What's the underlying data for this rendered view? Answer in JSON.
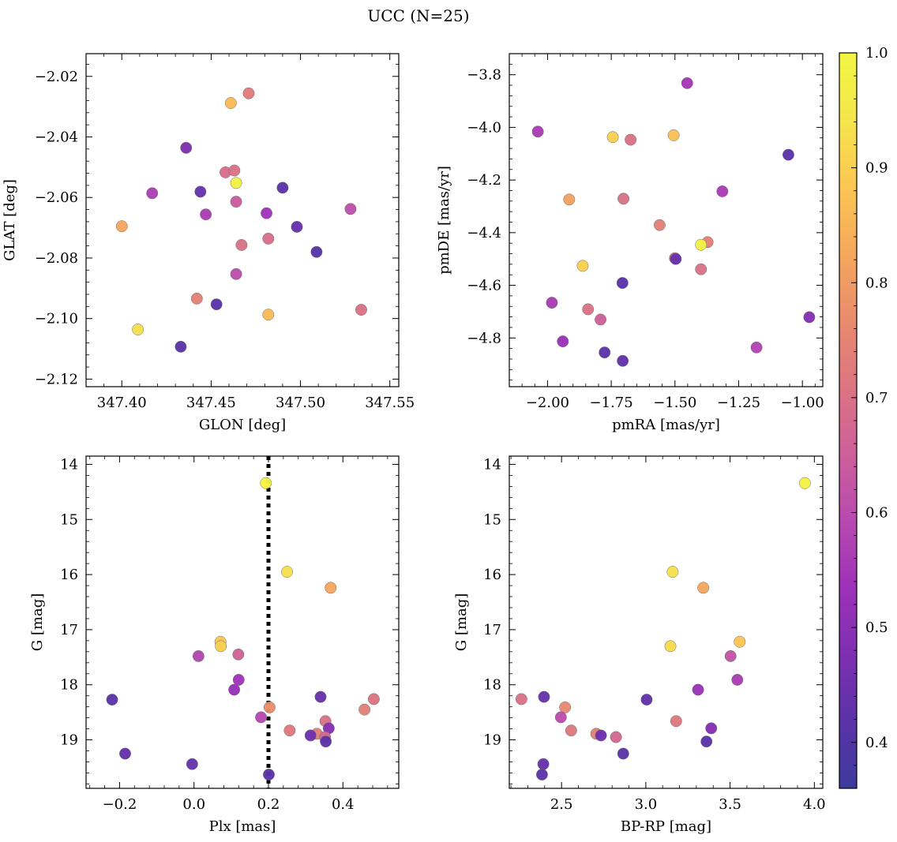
{
  "figure": {
    "title": "UCC (N=25)"
  },
  "colorbar": {
    "range": [
      0.36,
      1.0
    ],
    "ticks": [
      0.4,
      0.5,
      0.6,
      0.7,
      0.8,
      0.9,
      1.0
    ],
    "tick_labels": [
      "0.4",
      "0.5",
      "0.6",
      "0.7",
      "0.8",
      "0.9",
      "1.0"
    ],
    "colormap": "plasma",
    "stops": [
      "#3d3a9c",
      "#5a32a8",
      "#7d2fb2",
      "#9d31b8",
      "#b849b0",
      "#cd5f9a",
      "#dc7482",
      "#e98b6d",
      "#f5a85c",
      "#fbc652",
      "#f5e54c",
      "#f2f642"
    ]
  },
  "chart_data": [
    {
      "type": "scatter",
      "xlabel": "GLON [deg]",
      "ylabel": "GLAT [deg]",
      "xlim": [
        347.38,
        347.555
      ],
      "ylim": [
        -2.1225,
        -2.0125
      ],
      "xticks": [
        347.4,
        347.45,
        347.5,
        347.55
      ],
      "xtick_labels": [
        "347.40",
        "347.45",
        "347.50",
        "347.55"
      ],
      "yticks": [
        -2.12,
        -2.1,
        -2.08,
        -2.06,
        -2.04,
        -2.02
      ],
      "ytick_labels": [
        "−2.12",
        "−2.10",
        "−2.08",
        "−2.06",
        "−2.04",
        "−2.02"
      ],
      "points": [
        {
          "x": 347.461,
          "y": -2.0288,
          "c": 0.86
        },
        {
          "x": 347.471,
          "y": -2.0256,
          "c": 0.73
        },
        {
          "x": 347.436,
          "y": -2.0436,
          "c": 0.48
        },
        {
          "x": 347.458,
          "y": -2.0517,
          "c": 0.69
        },
        {
          "x": 347.463,
          "y": -2.0511,
          "c": 0.7
        },
        {
          "x": 347.464,
          "y": -2.0552,
          "c": 0.98
        },
        {
          "x": 347.417,
          "y": -2.0586,
          "c": 0.57
        },
        {
          "x": 347.444,
          "y": -2.0581,
          "c": 0.44
        },
        {
          "x": 347.49,
          "y": -2.0568,
          "c": 0.42
        },
        {
          "x": 347.464,
          "y": -2.0614,
          "c": 0.64
        },
        {
          "x": 347.447,
          "y": -2.0656,
          "c": 0.56
        },
        {
          "x": 347.481,
          "y": -2.0652,
          "c": 0.54
        },
        {
          "x": 347.528,
          "y": -2.0638,
          "c": 0.61
        },
        {
          "x": 347.4,
          "y": -2.0695,
          "c": 0.82
        },
        {
          "x": 347.498,
          "y": -2.0697,
          "c": 0.44
        },
        {
          "x": 347.482,
          "y": -2.0736,
          "c": 0.69
        },
        {
          "x": 347.467,
          "y": -2.0757,
          "c": 0.7
        },
        {
          "x": 347.509,
          "y": -2.078,
          "c": 0.41
        },
        {
          "x": 347.464,
          "y": -2.0853,
          "c": 0.6
        },
        {
          "x": 347.442,
          "y": -2.0934,
          "c": 0.74
        },
        {
          "x": 347.453,
          "y": -2.0953,
          "c": 0.42
        },
        {
          "x": 347.534,
          "y": -2.0971,
          "c": 0.7
        },
        {
          "x": 347.482,
          "y": -2.0987,
          "c": 0.86
        },
        {
          "x": 347.409,
          "y": -2.1036,
          "c": 0.93
        },
        {
          "x": 347.433,
          "y": -2.1093,
          "c": 0.42
        }
      ]
    },
    {
      "type": "scatter",
      "xlabel": "pmRA [mas/yr]",
      "ylabel": "pmDE [mas/yr]",
      "xlim": [
        -2.15,
        -0.92
      ],
      "ylim": [
        -4.985,
        -3.72
      ],
      "xticks": [
        -2.0,
        -1.75,
        -1.5,
        -1.25,
        -1.0
      ],
      "xtick_labels": [
        "−2.00",
        "−1.75",
        "−1.50",
        "−1.25",
        "−1.00"
      ],
      "yticks": [
        -4.8,
        -4.6,
        -4.4,
        -4.2,
        -4.0,
        -3.8
      ],
      "ytick_labels": [
        "−4.8",
        "−4.6",
        "−4.4",
        "−4.2",
        "−4.0",
        "−3.8"
      ],
      "points": [
        {
          "x": -1.452,
          "y": -3.832,
          "c": 0.55
        },
        {
          "x": -2.038,
          "y": -4.016,
          "c": 0.56
        },
        {
          "x": -1.744,
          "y": -4.037,
          "c": 0.9
        },
        {
          "x": -1.674,
          "y": -4.047,
          "c": 0.7
        },
        {
          "x": -1.505,
          "y": -4.03,
          "c": 0.87
        },
        {
          "x": -1.055,
          "y": -4.104,
          "c": 0.42
        },
        {
          "x": -1.915,
          "y": -4.274,
          "c": 0.81
        },
        {
          "x": -1.702,
          "y": -4.271,
          "c": 0.7
        },
        {
          "x": -1.314,
          "y": -4.243,
          "c": 0.56
        },
        {
          "x": -1.56,
          "y": -4.371,
          "c": 0.74
        },
        {
          "x": -1.372,
          "y": -4.436,
          "c": 0.74
        },
        {
          "x": -1.398,
          "y": -4.446,
          "c": 0.98
        },
        {
          "x": -1.5,
          "y": -4.497,
          "c": 0.69
        },
        {
          "x": -1.497,
          "y": -4.5,
          "c": 0.44
        },
        {
          "x": -1.862,
          "y": -4.526,
          "c": 0.9
        },
        {
          "x": -1.398,
          "y": -4.539,
          "c": 0.7
        },
        {
          "x": -1.706,
          "y": -4.591,
          "c": 0.42
        },
        {
          "x": -1.983,
          "y": -4.666,
          "c": 0.56
        },
        {
          "x": -1.841,
          "y": -4.691,
          "c": 0.7
        },
        {
          "x": -1.792,
          "y": -4.73,
          "c": 0.65
        },
        {
          "x": -0.973,
          "y": -4.721,
          "c": 0.49
        },
        {
          "x": -1.94,
          "y": -4.813,
          "c": 0.53
        },
        {
          "x": -1.18,
          "y": -4.836,
          "c": 0.58
        },
        {
          "x": -1.776,
          "y": -4.855,
          "c": 0.42
        },
        {
          "x": -1.705,
          "y": -4.887,
          "c": 0.43
        }
      ]
    },
    {
      "type": "scatter",
      "xlabel": "Plx [mas]",
      "ylabel": "G [mag]",
      "xlim": [
        -0.29,
        0.55
      ],
      "ylim": [
        19.88,
        13.85
      ],
      "xticks": [
        -0.2,
        0.0,
        0.2,
        0.4
      ],
      "xtick_labels": [
        "−0.2",
        "0.0",
        "0.2",
        "0.4"
      ],
      "yticks": [
        14,
        15,
        16,
        17,
        18,
        19
      ],
      "ytick_labels": [
        "14",
        "15",
        "16",
        "17",
        "18",
        "19"
      ],
      "vline": {
        "x": 0.2,
        "style": "dotted"
      },
      "points": [
        {
          "x": 0.193,
          "y": 14.34,
          "c": 0.99
        },
        {
          "x": 0.25,
          "y": 15.95,
          "c": 0.93
        },
        {
          "x": 0.367,
          "y": 16.24,
          "c": 0.82
        },
        {
          "x": 0.071,
          "y": 17.22,
          "c": 0.88
        },
        {
          "x": 0.072,
          "y": 17.3,
          "c": 0.9
        },
        {
          "x": 0.012,
          "y": 17.48,
          "c": 0.58
        },
        {
          "x": 0.119,
          "y": 17.45,
          "c": 0.66
        },
        {
          "x": 0.12,
          "y": 17.91,
          "c": 0.54
        },
        {
          "x": 0.108,
          "y": 18.09,
          "c": 0.52
        },
        {
          "x": -0.22,
          "y": 18.27,
          "c": 0.42
        },
        {
          "x": 0.34,
          "y": 18.22,
          "c": 0.44
        },
        {
          "x": 0.483,
          "y": 18.26,
          "c": 0.71
        },
        {
          "x": 0.458,
          "y": 18.45,
          "c": 0.74
        },
        {
          "x": 0.203,
          "y": 18.41,
          "c": 0.77
        },
        {
          "x": 0.18,
          "y": 18.59,
          "c": 0.59
        },
        {
          "x": 0.353,
          "y": 18.66,
          "c": 0.7
        },
        {
          "x": 0.362,
          "y": 18.79,
          "c": 0.49
        },
        {
          "x": 0.257,
          "y": 18.83,
          "c": 0.72
        },
        {
          "x": 0.33,
          "y": 18.89,
          "c": 0.74
        },
        {
          "x": 0.313,
          "y": 18.92,
          "c": 0.45
        },
        {
          "x": 0.352,
          "y": 18.95,
          "c": 0.67
        },
        {
          "x": 0.354,
          "y": 19.03,
          "c": 0.42
        },
        {
          "x": -0.185,
          "y": 19.25,
          "c": 0.43
        },
        {
          "x": -0.005,
          "y": 19.44,
          "c": 0.44
        },
        {
          "x": 0.201,
          "y": 19.63,
          "c": 0.42
        }
      ]
    },
    {
      "type": "scatter",
      "xlabel": "BP-RP [mag]",
      "ylabel": "G [mag]",
      "xlim": [
        2.19,
        4.05
      ],
      "ylim": [
        19.88,
        13.85
      ],
      "xticks": [
        2.5,
        3.0,
        3.5,
        4.0
      ],
      "xtick_labels": [
        "2.5",
        "3.0",
        "3.5",
        "4.0"
      ],
      "yticks": [
        14,
        15,
        16,
        17,
        18,
        19
      ],
      "ytick_labels": [
        "14",
        "15",
        "16",
        "17",
        "18",
        "19"
      ],
      "points": [
        {
          "x": 3.944,
          "y": 14.34,
          "c": 0.99
        },
        {
          "x": 3.159,
          "y": 15.95,
          "c": 0.93
        },
        {
          "x": 3.341,
          "y": 16.24,
          "c": 0.82
        },
        {
          "x": 3.557,
          "y": 17.22,
          "c": 0.88
        },
        {
          "x": 3.146,
          "y": 17.3,
          "c": 0.92
        },
        {
          "x": 3.503,
          "y": 17.48,
          "c": 0.62
        },
        {
          "x": 3.543,
          "y": 17.91,
          "c": 0.56
        },
        {
          "x": 3.31,
          "y": 18.09,
          "c": 0.53
        },
        {
          "x": 2.262,
          "y": 18.26,
          "c": 0.7
        },
        {
          "x": 2.396,
          "y": 18.22,
          "c": 0.44
        },
        {
          "x": 3.005,
          "y": 18.27,
          "c": 0.43
        },
        {
          "x": 2.521,
          "y": 18.41,
          "c": 0.76
        },
        {
          "x": 2.496,
          "y": 18.59,
          "c": 0.6
        },
        {
          "x": 3.18,
          "y": 18.66,
          "c": 0.72
        },
        {
          "x": 3.388,
          "y": 18.79,
          "c": 0.49
        },
        {
          "x": 2.557,
          "y": 18.83,
          "c": 0.72
        },
        {
          "x": 2.706,
          "y": 18.89,
          "c": 0.74
        },
        {
          "x": 2.734,
          "y": 18.92,
          "c": 0.45
        },
        {
          "x": 2.823,
          "y": 18.95,
          "c": 0.67
        },
        {
          "x": 3.36,
          "y": 19.03,
          "c": 0.42
        },
        {
          "x": 2.866,
          "y": 19.25,
          "c": 0.42
        },
        {
          "x": 2.392,
          "y": 19.44,
          "c": 0.44
        },
        {
          "x": 2.384,
          "y": 19.63,
          "c": 0.42
        }
      ]
    }
  ]
}
